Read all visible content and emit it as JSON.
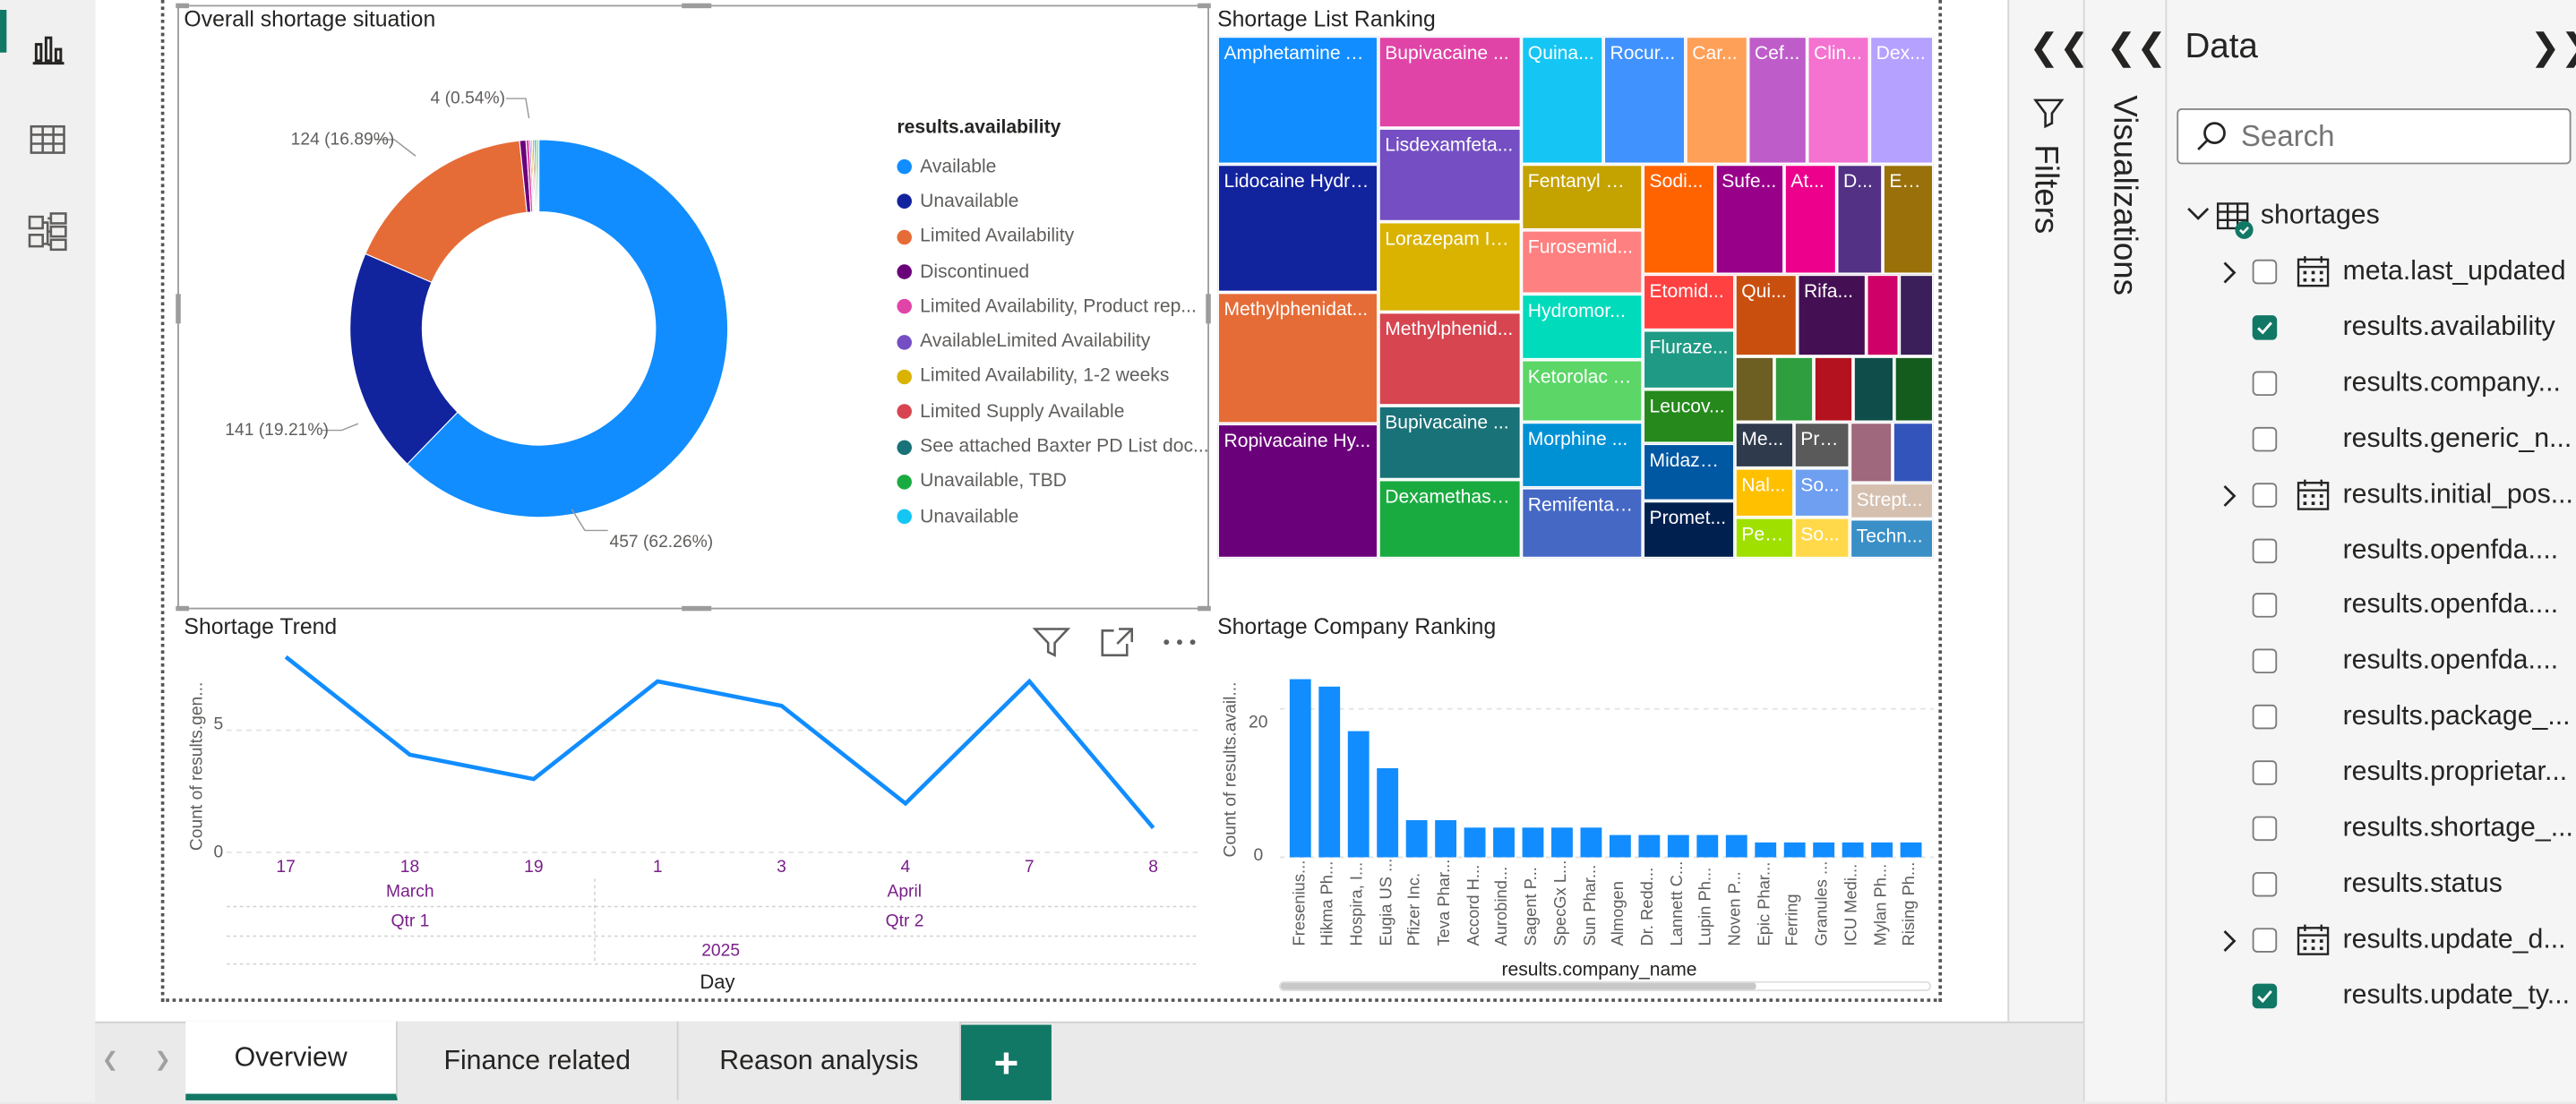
{
  "nav": {
    "rail_items": [
      {
        "name": "report-view-icon",
        "active": true
      },
      {
        "name": "table-view-icon",
        "active": false
      },
      {
        "name": "model-view-icon",
        "active": false
      }
    ]
  },
  "visuals": {
    "donut": {
      "title": "Overall shortage situation",
      "legend_title": "results.availability",
      "legend_items": [
        {
          "label": "Available",
          "color": "#118dff"
        },
        {
          "label": "Unavailable",
          "color": "#12239e"
        },
        {
          "label": "Limited Availability",
          "color": "#e66c37"
        },
        {
          "label": "Discontinued",
          "color": "#6b007b"
        },
        {
          "label": "Limited Availability, Product rep...",
          "color": "#e044a7"
        },
        {
          "label": "AvailableLimited Availability",
          "color": "#744ec2"
        },
        {
          "label": "Limited Availability, 1-2 weeks",
          "color": "#d9b300"
        },
        {
          "label": "Limited Supply Available",
          "color": "#d64550"
        },
        {
          "label": "See attached Baxter PD List doc...",
          "color": "#197278"
        },
        {
          "label": "Unavailable, TBD",
          "color": "#1aab40"
        },
        {
          "label": "Unavailable",
          "color": "#15c6f4"
        }
      ],
      "data_labels": [
        "457 (62.26%)",
        "141 (19.21%)",
        "124 (16.89%)",
        "4 (0.54%)"
      ]
    },
    "treemap": {
      "title": "Shortage List Ranking",
      "cells": [
        {
          "label": "Amphetamine A...",
          "color": "#118dff"
        },
        {
          "label": "Lidocaine Hydro...",
          "color": "#12239e"
        },
        {
          "label": "Methylphenidat...",
          "color": "#e66c37"
        },
        {
          "label": "Ropivacaine Hy...",
          "color": "#6b007b"
        },
        {
          "label": "Bupivacaine ...",
          "color": "#e044a7"
        },
        {
          "label": "Lisdexamfeta...",
          "color": "#744ec2"
        },
        {
          "label": "Lorazepam Inj...",
          "color": "#d9b300"
        },
        {
          "label": "Methylphenid...",
          "color": "#d64550"
        },
        {
          "label": "Bupivacaine ...",
          "color": "#197278"
        },
        {
          "label": "Dexamethaso...",
          "color": "#1aab40"
        },
        {
          "label": "Quina...",
          "color": "#15c6f4"
        },
        {
          "label": "Rocur...",
          "color": "#4092ff"
        },
        {
          "label": "Car...",
          "color": "#ffa058"
        },
        {
          "label": "Cef...",
          "color": "#be5dc9"
        },
        {
          "label": "Clin...",
          "color": "#f472d0"
        },
        {
          "label": "Dex...",
          "color": "#b5a1ff"
        },
        {
          "label": "Fentanyl Ci...",
          "color": "#c4a200"
        },
        {
          "label": "Furosemid...",
          "color": "#ff8080"
        },
        {
          "label": "Hydromor...",
          "color": "#00dbbc"
        },
        {
          "label": "Ketorolac T...",
          "color": "#5bd667"
        },
        {
          "label": "Morphine ...",
          "color": "#0091d5"
        },
        {
          "label": "Remifentan...",
          "color": "#4668c5"
        },
        {
          "label": "Sodi...",
          "color": "#ff6300"
        },
        {
          "label": "Sufe...",
          "color": "#99008a"
        },
        {
          "label": "At...",
          "color": "#ec008c"
        },
        {
          "label": "D...",
          "color": "#533285"
        },
        {
          "label": "Ep...",
          "color": "#99700a"
        },
        {
          "label": "Etomid...",
          "color": "#ff4141"
        },
        {
          "label": "Fluraze...",
          "color": "#1f9a85"
        },
        {
          "label": "Leucov...",
          "color": "#25891c"
        },
        {
          "label": "Midazol...",
          "color": "#0057a2"
        },
        {
          "label": "Promet...",
          "color": "#002050"
        },
        {
          "label": "Qui...",
          "color": "#c94f0f"
        },
        {
          "label": "Rifa...",
          "color": "#450f54"
        },
        {
          "label": "Me...",
          "color": "#2f3b4c"
        },
        {
          "label": "Pro...",
          "color": "#5a5a5a"
        },
        {
          "label": "Nal...",
          "color": "#ffc000"
        },
        {
          "label": "So...",
          "color": "#6e9ff0"
        },
        {
          "label": "Pen...",
          "color": "#a0e000"
        },
        {
          "label": "So...",
          "color": "#ffd94a"
        },
        {
          "label": "Strept...",
          "color": "#d5c0b0"
        },
        {
          "label": "Techn...",
          "color": "#3a8fc7"
        }
      ]
    },
    "trend": {
      "title": "Shortage Trend",
      "ylabel": "Count of results.gen...",
      "xlabel": "Day",
      "y_ticks": [
        "0",
        "5"
      ],
      "day_labels": [
        "17",
        "18",
        "19",
        "1",
        "3",
        "4",
        "7",
        "8"
      ],
      "month_labels": [
        "March",
        "April"
      ],
      "quarter_labels": [
        "Qtr 1",
        "Qtr 2"
      ],
      "year_label": "2025"
    },
    "company": {
      "title": "Shortage Company Ranking",
      "ylabel": "Count of results.avail...",
      "xlabel": "results.company_name",
      "y_ticks": [
        "0",
        "20"
      ]
    }
  },
  "chart_data": [
    {
      "type": "pie",
      "title": "Overall shortage situation",
      "categories": [
        "Available",
        "Unavailable",
        "Limited Availability",
        "Discontinued",
        "Limited Availability, Product rep...",
        "AvailableLimited Availability",
        "Limited Availability, 1-2 weeks",
        "Limited Supply Available",
        "See attached Baxter PD List doc...",
        "Unavailable, TBD",
        "Unavailable"
      ],
      "values": [
        457,
        141,
        124,
        4,
        2,
        1,
        1,
        1,
        1,
        1,
        1
      ],
      "legend": "right"
    },
    {
      "type": "line",
      "title": "Shortage Trend",
      "x": [
        "17",
        "18",
        "19",
        "1",
        "3",
        "4",
        "7",
        "8"
      ],
      "values": [
        8,
        4,
        3,
        7,
        6,
        2,
        7,
        1
      ],
      "xlabel": "Day",
      "ylabel": "Count of results.gen...",
      "ylim": [
        0,
        8
      ],
      "grid": true
    },
    {
      "type": "bar",
      "title": "Shortage Company Ranking",
      "categories": [
        "Fresenius...",
        "Hikma Ph...",
        "Hospira, I...",
        "Eugia US ...",
        "Pfizer Inc.",
        "Teva Phar...",
        "Accord H...",
        "Aurobind...",
        "Sagent P...",
        "SpecGx L...",
        "Sun Phar...",
        "Almogen",
        "Dr. Redd...",
        "Lannett C...",
        "Lupin Ph...",
        "Noven P...",
        "Epic Phar...",
        "Ferring",
        "Granules ...",
        "ICU Medi...",
        "Mylan Ph...",
        "Rising Ph..."
      ],
      "values": [
        24,
        23,
        17,
        12,
        5,
        5,
        4,
        4,
        4,
        4,
        4,
        3,
        3,
        3,
        3,
        3,
        2,
        2,
        2,
        2,
        2,
        2
      ],
      "xlabel": "results.company_name",
      "ylabel": "Count of results.avail...",
      "ylim": [
        0,
        27
      ],
      "grid": true
    }
  ],
  "tabs": {
    "items": [
      {
        "label": "Overview",
        "active": true
      },
      {
        "label": "Finance related",
        "active": false
      },
      {
        "label": "Reason analysis",
        "active": false
      }
    ],
    "add_label": "+"
  },
  "panes": {
    "filters_label": "Filters",
    "visualizations_label": "Visualizations",
    "data": {
      "title": "Data",
      "search_placeholder": "Search",
      "table_name": "shortages",
      "fields": [
        {
          "label": "meta.last_updated",
          "checked": false,
          "expandable": true,
          "date_icon": true
        },
        {
          "label": "results.availability",
          "checked": true,
          "expandable": false,
          "date_icon": false
        },
        {
          "label": "results.company...",
          "checked": false,
          "expandable": false,
          "date_icon": false
        },
        {
          "label": "results.generic_n...",
          "checked": false,
          "expandable": false,
          "date_icon": false
        },
        {
          "label": "results.initial_pos...",
          "checked": false,
          "expandable": true,
          "date_icon": true
        },
        {
          "label": "results.openfda....",
          "checked": false,
          "expandable": false,
          "date_icon": false
        },
        {
          "label": "results.openfda....",
          "checked": false,
          "expandable": false,
          "date_icon": false
        },
        {
          "label": "results.openfda....",
          "checked": false,
          "expandable": false,
          "date_icon": false
        },
        {
          "label": "results.package_...",
          "checked": false,
          "expandable": false,
          "date_icon": false
        },
        {
          "label": "results.proprietar...",
          "checked": false,
          "expandable": false,
          "date_icon": false
        },
        {
          "label": "results.shortage_...",
          "checked": false,
          "expandable": false,
          "date_icon": false
        },
        {
          "label": "results.status",
          "checked": false,
          "expandable": false,
          "date_icon": false
        },
        {
          "label": "results.update_d...",
          "checked": false,
          "expandable": true,
          "date_icon": true
        },
        {
          "label": "results.update_ty...",
          "checked": true,
          "expandable": false,
          "date_icon": false
        }
      ]
    }
  }
}
